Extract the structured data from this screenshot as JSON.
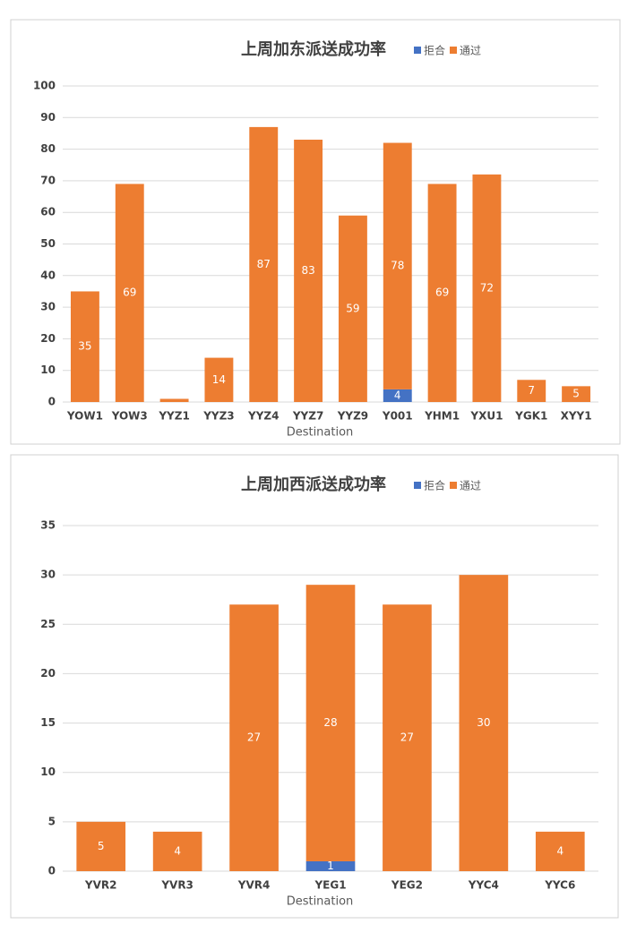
{
  "chart_data": [
    {
      "type": "stacked_bar",
      "title": "上周加东派送成功率",
      "x_label": "Destination",
      "categories": [
        "YOW1",
        "YOW3",
        "YYZ1",
        "YYZ3",
        "YYZ4",
        "YYZ7",
        "YYZ9",
        "Y001",
        "YHM1",
        "YXU1",
        "YGK1",
        "XYY1"
      ],
      "series": [
        {
          "name": "拒合",
          "color": "#4472c4",
          "values": [
            null,
            null,
            null,
            null,
            null,
            null,
            null,
            4,
            null,
            null,
            null,
            null
          ]
        },
        {
          "name": "通过",
          "color": "#ed7d31",
          "values": [
            35,
            69,
            1,
            14,
            87,
            83,
            59,
            78,
            69,
            72,
            7,
            5
          ]
        }
      ],
      "ylim": [
        0,
        100
      ],
      "yticks": [
        0,
        10,
        20,
        30,
        40,
        50,
        60,
        70,
        80,
        90,
        100
      ],
      "grid": true,
      "legend": "top-right"
    },
    {
      "type": "stacked_bar",
      "title": "上周加西派送成功率",
      "x_label": "Destination",
      "categories": [
        "YVR2",
        "YVR3",
        "YVR4",
        "YEG1",
        "YEG2",
        "YYC4",
        "YYC6"
      ],
      "series": [
        {
          "name": "拒合",
          "color": "#4472c4",
          "values": [
            null,
            null,
            null,
            1,
            null,
            null,
            null
          ]
        },
        {
          "name": "通过",
          "color": "#ed7d31",
          "values": [
            5,
            4,
            27,
            28,
            27,
            30,
            4
          ]
        }
      ],
      "ylim": [
        0,
        35
      ],
      "yticks": [
        0,
        5,
        10,
        15,
        20,
        25,
        30,
        35
      ],
      "grid": true,
      "legend": "top-right"
    }
  ]
}
